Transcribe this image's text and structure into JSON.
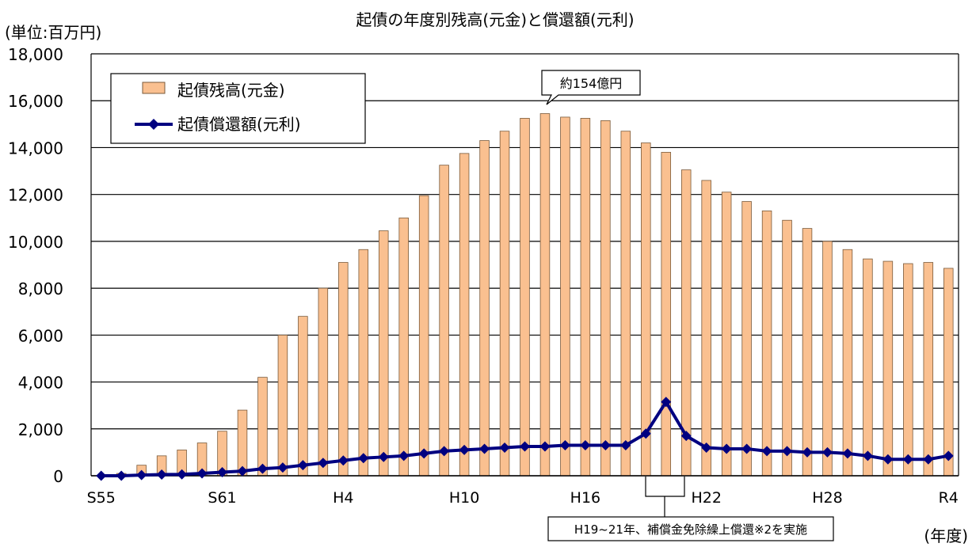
{
  "chart_data": {
    "type": "bar",
    "title": "起債の年度別残高(元金)と償還額(元利)",
    "unit_label": "(単位:百万円)",
    "xlabel": "(年度)",
    "ylim": [
      0,
      18000
    ],
    "yticks": [
      0,
      2000,
      4000,
      6000,
      8000,
      10000,
      12000,
      14000,
      16000,
      18000
    ],
    "ytick_labels": [
      "0",
      "2,000",
      "4,000",
      "6,000",
      "8,000",
      "10,000",
      "12,000",
      "14,000",
      "16,000",
      "18,000"
    ],
    "grid": true,
    "legend_position": "top-left",
    "categories": [
      "S55",
      "S56",
      "S57",
      "S58",
      "S59",
      "S60",
      "S61",
      "S62",
      "S63",
      "H1",
      "H2",
      "H3",
      "H4",
      "H5",
      "H6",
      "H7",
      "H8",
      "H9",
      "H10",
      "H11",
      "H12",
      "H13",
      "H14",
      "H15",
      "H16",
      "H17",
      "H18",
      "H19",
      "H20",
      "H21",
      "H22",
      "H23",
      "H24",
      "H25",
      "H26",
      "H27",
      "H28",
      "H29",
      "H30",
      "R1",
      "R2",
      "R3",
      "R4"
    ],
    "xtick_labels": [
      "S55",
      "S61",
      "H4",
      "H10",
      "H16",
      "H22",
      "H28",
      "R4"
    ],
    "series": [
      {
        "name": "起債残高(元金)",
        "kind": "bar",
        "color": "#FAC090",
        "stroke": "#7a5a3a",
        "values": [
          0,
          100,
          450,
          850,
          1100,
          1400,
          1900,
          2800,
          4200,
          6000,
          6800,
          8000,
          9100,
          9650,
          10450,
          11000,
          11950,
          13250,
          13750,
          14300,
          14700,
          15250,
          15450,
          15300,
          15250,
          15150,
          14700,
          14200,
          13800,
          13050,
          12600,
          12100,
          11700,
          11300,
          10900,
          10550,
          10000,
          9650,
          9250,
          9150,
          9050,
          9100,
          8850
        ]
      },
      {
        "name": "起債償還額(元利)",
        "kind": "line",
        "color": "#000080",
        "values": [
          0,
          0,
          30,
          50,
          60,
          100,
          150,
          200,
          300,
          350,
          450,
          550,
          650,
          750,
          800,
          850,
          950,
          1050,
          1100,
          1150,
          1200,
          1250,
          1250,
          1300,
          1300,
          1300,
          1300,
          1800,
          3150,
          1700,
          1200,
          1150,
          1150,
          1050,
          1050,
          1000,
          1000,
          950,
          850,
          700,
          700,
          700,
          850
        ]
      }
    ],
    "annotations": [
      {
        "text": "約154億円",
        "target_category": "H14"
      },
      {
        "text": "H19~21年、補償金免除繰上償還※2を実施",
        "range": [
          "H19",
          "H21"
        ]
      }
    ]
  }
}
